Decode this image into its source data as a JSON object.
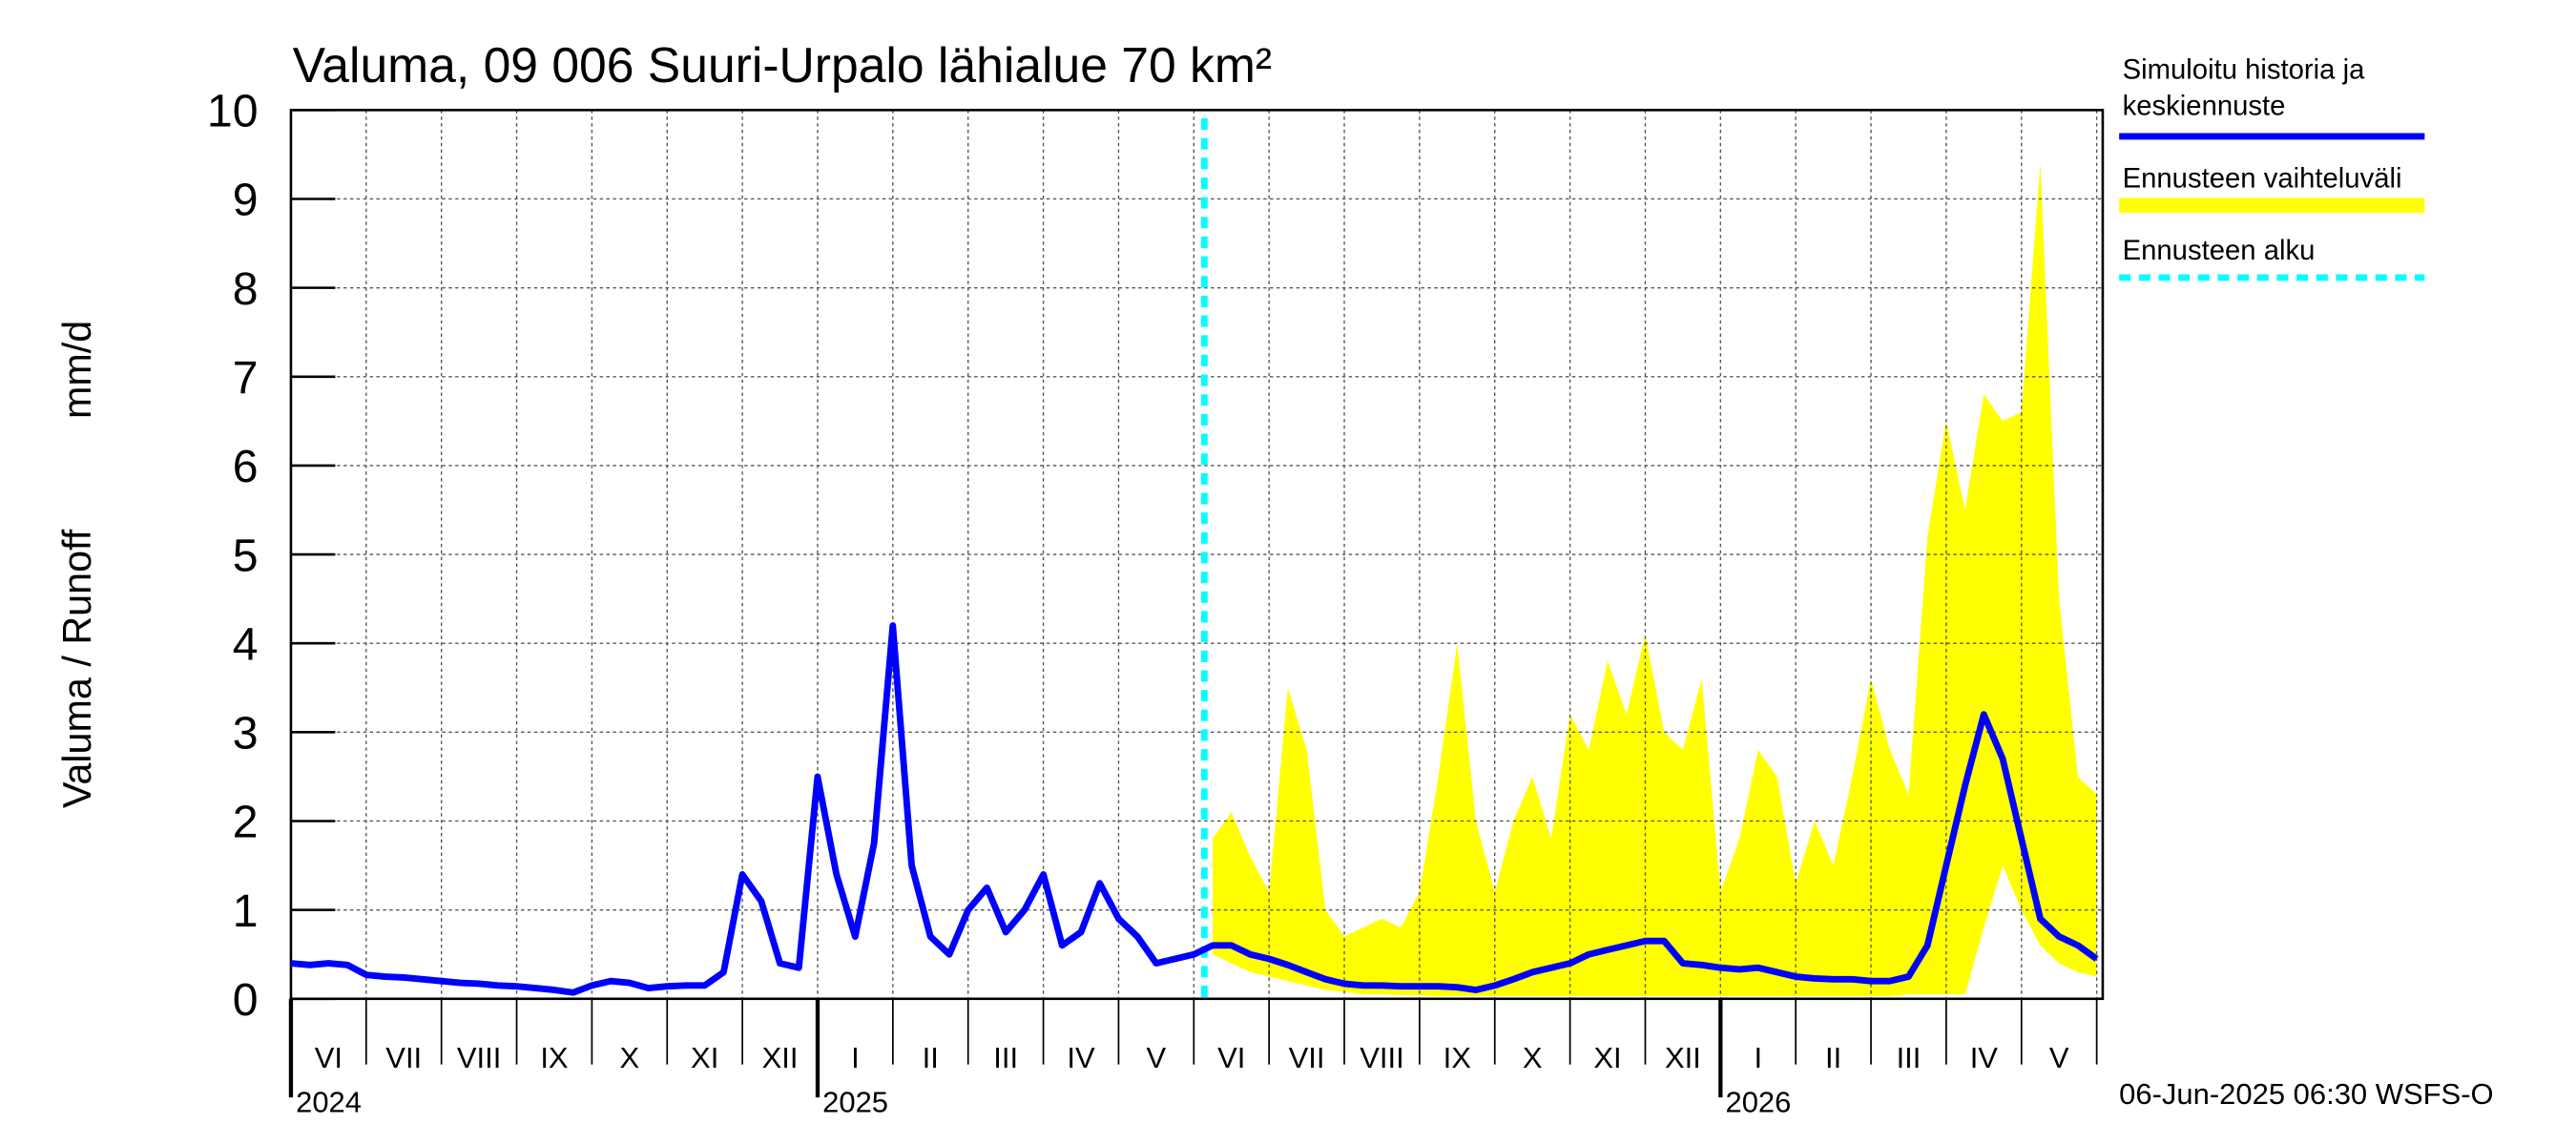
{
  "chart_data": {
    "type": "line",
    "title": "Valuma, 09 006 Suuri-Urpalo lähialue 70 km²",
    "y_label": "Valuma / Runoff",
    "y_unit": "mm/d",
    "footer": "06-Jun-2025 06:30 WSFS-O",
    "ylim": [
      0,
      10
    ],
    "yticks": [
      0,
      1,
      2,
      3,
      4,
      5,
      6,
      7,
      8,
      9,
      10
    ],
    "xlim": [
      0,
      24.08
    ],
    "grid": true,
    "month_labels": [
      "VI",
      "VII",
      "VIII",
      "IX",
      "X",
      "XI",
      "XII",
      "I",
      "II",
      "III",
      "IV",
      "V",
      "VI",
      "VII",
      "VIII",
      "IX",
      "X",
      "XI",
      "XII",
      "I",
      "II",
      "III",
      "IV",
      "V"
    ],
    "year_ticks": [
      {
        "value": 0,
        "label": "2024"
      },
      {
        "value": 7,
        "label": "2025"
      },
      {
        "value": 19,
        "label": "2026"
      }
    ],
    "x": [
      0,
      0.25,
      0.5,
      0.75,
      1,
      1.25,
      1.5,
      1.75,
      2,
      2.25,
      2.5,
      2.75,
      3,
      3.25,
      3.5,
      3.75,
      4,
      4.25,
      4.5,
      4.75,
      5,
      5.25,
      5.5,
      5.75,
      6,
      6.25,
      6.5,
      6.75,
      7,
      7.25,
      7.5,
      7.75,
      8,
      8.25,
      8.5,
      8.75,
      9,
      9.25,
      9.5,
      9.75,
      10,
      10.25,
      10.5,
      10.75,
      11,
      11.25,
      11.5,
      11.75,
      12,
      12.25,
      12.5,
      12.75,
      13,
      13.25,
      13.5,
      13.75,
      14,
      14.25,
      14.5,
      14.75,
      15,
      15.25,
      15.5,
      15.75,
      16,
      16.25,
      16.5,
      16.75,
      17,
      17.25,
      17.5,
      17.75,
      18,
      18.25,
      18.5,
      18.75,
      19,
      19.25,
      19.5,
      19.75,
      20,
      20.25,
      20.5,
      20.75,
      21,
      21.25,
      21.5,
      21.75,
      22,
      22.25,
      22.5,
      22.75,
      23,
      23.25,
      23.5,
      23.75,
      24
    ],
    "series": [
      {
        "name": "Simuloitu historia ja keskiennuste",
        "color": "#0000ff",
        "values": [
          0.4,
          0.38,
          0.4,
          0.38,
          0.27,
          0.25,
          0.24,
          0.22,
          0.2,
          0.18,
          0.17,
          0.15,
          0.14,
          0.12,
          0.1,
          0.07,
          0.15,
          0.2,
          0.18,
          0.12,
          0.14,
          0.15,
          0.15,
          0.3,
          1.4,
          1.1,
          0.4,
          0.35,
          2.5,
          1.4,
          0.7,
          1.75,
          4.2,
          1.5,
          0.7,
          0.5,
          1.0,
          1.25,
          0.75,
          1.0,
          1.4,
          0.6,
          0.75,
          1.3,
          0.9,
          0.7,
          0.4,
          0.45,
          0.5,
          0.6,
          0.6,
          0.5,
          0.45,
          0.38,
          0.3,
          0.22,
          0.17,
          0.15,
          0.15,
          0.14,
          0.14,
          0.14,
          0.13,
          0.1,
          0.15,
          0.22,
          0.3,
          0.35,
          0.4,
          0.5,
          0.55,
          0.6,
          0.65,
          0.65,
          0.4,
          0.38,
          0.35,
          0.33,
          0.35,
          0.3,
          0.25,
          0.23,
          0.22,
          0.22,
          0.2,
          0.2,
          0.25,
          0.6,
          1.5,
          2.4,
          3.2,
          2.7,
          1.8,
          0.9,
          0.7,
          0.6,
          0.45
        ]
      },
      {
        "name": "Ennusteen vaihteluväli",
        "color": "#ffff00",
        "upper": [
          null,
          null,
          null,
          null,
          null,
          null,
          null,
          null,
          null,
          null,
          null,
          null,
          null,
          null,
          null,
          null,
          null,
          null,
          null,
          null,
          null,
          null,
          null,
          null,
          null,
          null,
          null,
          null,
          null,
          null,
          null,
          null,
          null,
          null,
          null,
          null,
          null,
          null,
          null,
          null,
          null,
          null,
          null,
          null,
          null,
          null,
          null,
          null,
          null,
          1.8,
          2.1,
          1.6,
          1.2,
          3.5,
          2.8,
          1.0,
          0.7,
          0.8,
          0.9,
          0.8,
          1.2,
          2.5,
          4.0,
          2.0,
          1.2,
          2.0,
          2.5,
          1.8,
          3.2,
          2.8,
          3.8,
          3.2,
          4.1,
          3.0,
          2.8,
          3.6,
          1.2,
          1.8,
          2.8,
          2.5,
          1.3,
          2.0,
          1.5,
          2.5,
          3.6,
          2.8,
          2.3,
          5.2,
          6.5,
          5.5,
          6.8,
          6.5,
          6.6,
          9.4,
          4.5,
          2.5,
          2.3
        ],
        "lower": [
          null,
          null,
          null,
          null,
          null,
          null,
          null,
          null,
          null,
          null,
          null,
          null,
          null,
          null,
          null,
          null,
          null,
          null,
          null,
          null,
          null,
          null,
          null,
          null,
          null,
          null,
          null,
          null,
          null,
          null,
          null,
          null,
          null,
          null,
          null,
          null,
          null,
          null,
          null,
          null,
          null,
          null,
          null,
          null,
          null,
          null,
          null,
          null,
          null,
          0.5,
          0.4,
          0.3,
          0.25,
          0.2,
          0.15,
          0.1,
          0.08,
          0.05,
          0.05,
          0.04,
          0.04,
          0.03,
          0.03,
          0.03,
          0.03,
          0.03,
          0.03,
          0.03,
          0.03,
          0.03,
          0.03,
          0.03,
          0.03,
          0.03,
          0.03,
          0.03,
          0.03,
          0.03,
          0.03,
          0.03,
          0.03,
          0.03,
          0.03,
          0.03,
          0.03,
          0.03,
          0.05,
          0.05,
          0.05,
          0.05,
          0.8,
          1.5,
          1.0,
          0.6,
          0.4,
          0.3,
          0.25
        ]
      }
    ],
    "forecast_start": {
      "name": "Ennusteen alku",
      "color": "#00ffff",
      "x": 12.14
    }
  }
}
